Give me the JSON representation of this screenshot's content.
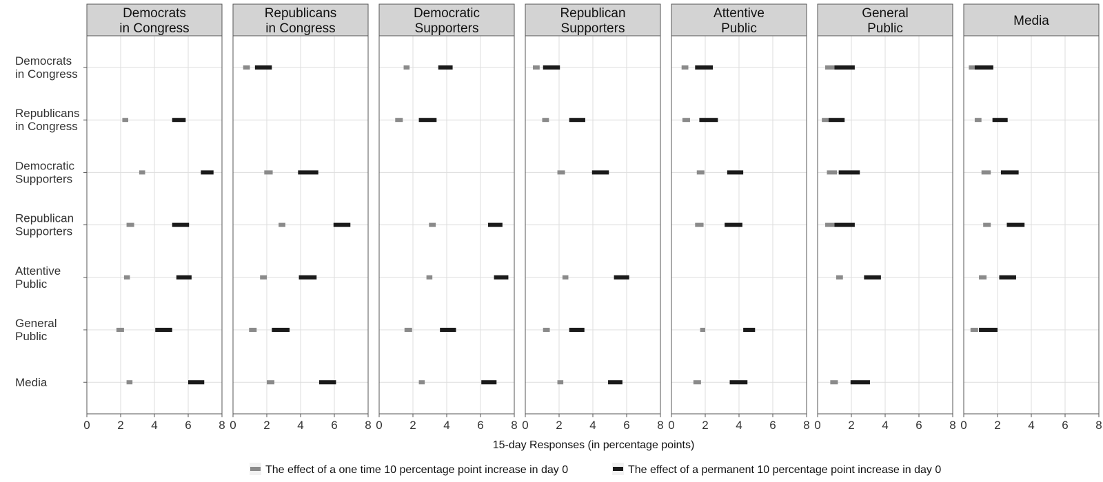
{
  "chart_data": {
    "type": "interval",
    "xlabel": "15-day Responses (in percentage points)",
    "xlim": [
      0,
      8
    ],
    "xticks": [
      "0",
      "2",
      "4",
      "6",
      "8"
    ],
    "grid": true,
    "legend_position": "bottom",
    "rows": [
      "Democrats\nin Congress",
      "Republicans\nin Congress",
      "Democratic\nSupporters",
      "Republican\nSupporters",
      "Attentive\nPublic",
      "General\nPublic",
      "Media"
    ],
    "panels": [
      "Democrats\nin Congress",
      "Republicans\nin Congress",
      "Democratic\nSupporters",
      "Republican\nSupporters",
      "Attentive\nPublic",
      "General\nPublic",
      "Media"
    ],
    "series": [
      {
        "name": "The effect of a one time 10 percentage point increase in day 0",
        "color": "#8a8a8a",
        "intervals": [
          [
            null,
            [
              0.6,
              1.0
            ],
            [
              1.45,
              1.8
            ],
            [
              0.45,
              0.85
            ],
            [
              0.6,
              1.0
            ],
            [
              0.45,
              1.0
            ],
            [
              0.3,
              0.7
            ]
          ],
          [
            [
              2.1,
              2.45
            ],
            null,
            [
              0.95,
              1.4
            ],
            [
              1.0,
              1.4
            ],
            [
              0.65,
              1.1
            ],
            [
              0.25,
              0.65
            ],
            [
              0.65,
              1.05
            ]
          ],
          [
            [
              3.1,
              3.45
            ],
            [
              1.85,
              2.35
            ],
            null,
            [
              1.9,
              2.35
            ],
            [
              1.5,
              1.95
            ],
            [
              0.55,
              1.15
            ],
            [
              1.05,
              1.6
            ]
          ],
          [
            [
              2.35,
              2.8
            ],
            [
              2.7,
              3.1
            ],
            [
              2.95,
              3.35
            ],
            null,
            [
              1.4,
              1.9
            ],
            [
              0.45,
              1.0
            ],
            [
              1.15,
              1.6
            ]
          ],
          [
            [
              2.2,
              2.55
            ],
            [
              1.6,
              2.0
            ],
            [
              2.8,
              3.15
            ],
            [
              2.2,
              2.55
            ],
            null,
            [
              1.1,
              1.5
            ],
            [
              0.9,
              1.35
            ]
          ],
          [
            [
              1.75,
              2.2
            ],
            [
              0.95,
              1.4
            ],
            [
              1.5,
              1.95
            ],
            [
              1.05,
              1.45
            ],
            [
              1.7,
              2.0
            ],
            null,
            [
              0.4,
              0.85
            ]
          ],
          [
            [
              2.35,
              2.7
            ],
            [
              2.0,
              2.45
            ],
            [
              2.35,
              2.7
            ],
            [
              1.9,
              2.25
            ],
            [
              1.3,
              1.75
            ],
            [
              0.75,
              1.2
            ],
            null
          ]
        ]
      },
      {
        "name": "The effect of a permanent 10 percentage point increase in day 0",
        "color": "#1a1a1a",
        "intervals": [
          [
            null,
            [
              1.3,
              2.3
            ],
            [
              3.5,
              4.35
            ],
            [
              1.05,
              2.05
            ],
            [
              1.4,
              2.45
            ],
            [
              1.0,
              2.2
            ],
            [
              0.65,
              1.75
            ]
          ],
          [
            [
              5.05,
              5.85
            ],
            null,
            [
              2.35,
              3.4
            ],
            [
              2.6,
              3.55
            ],
            [
              1.65,
              2.75
            ],
            [
              0.65,
              1.6
            ],
            [
              1.7,
              2.6
            ]
          ],
          [
            [
              6.75,
              7.5
            ],
            [
              3.85,
              5.05
            ],
            null,
            [
              3.95,
              4.95
            ],
            [
              3.3,
              4.25
            ],
            [
              1.25,
              2.5
            ],
            [
              2.2,
              3.25
            ]
          ],
          [
            [
              5.05,
              6.05
            ],
            [
              5.95,
              6.95
            ],
            [
              6.45,
              7.3
            ],
            null,
            [
              3.15,
              4.2
            ],
            [
              1.0,
              2.2
            ],
            [
              2.55,
              3.6
            ]
          ],
          [
            [
              5.3,
              6.2
            ],
            [
              3.9,
              4.95
            ],
            [
              6.8,
              7.65
            ],
            [
              5.25,
              6.15
            ],
            null,
            [
              2.75,
              3.75
            ],
            [
              2.1,
              3.1
            ]
          ],
          [
            [
              4.05,
              5.05
            ],
            [
              2.3,
              3.35
            ],
            [
              3.6,
              4.55
            ],
            [
              2.6,
              3.5
            ],
            [
              4.25,
              4.95
            ],
            null,
            [
              0.9,
              2.0
            ]
          ],
          [
            [
              6.0,
              6.95
            ],
            [
              5.1,
              6.1
            ],
            [
              6.05,
              6.95
            ],
            [
              4.9,
              5.75
            ],
            [
              3.45,
              4.5
            ],
            [
              1.95,
              3.1
            ],
            null
          ]
        ]
      }
    ]
  }
}
